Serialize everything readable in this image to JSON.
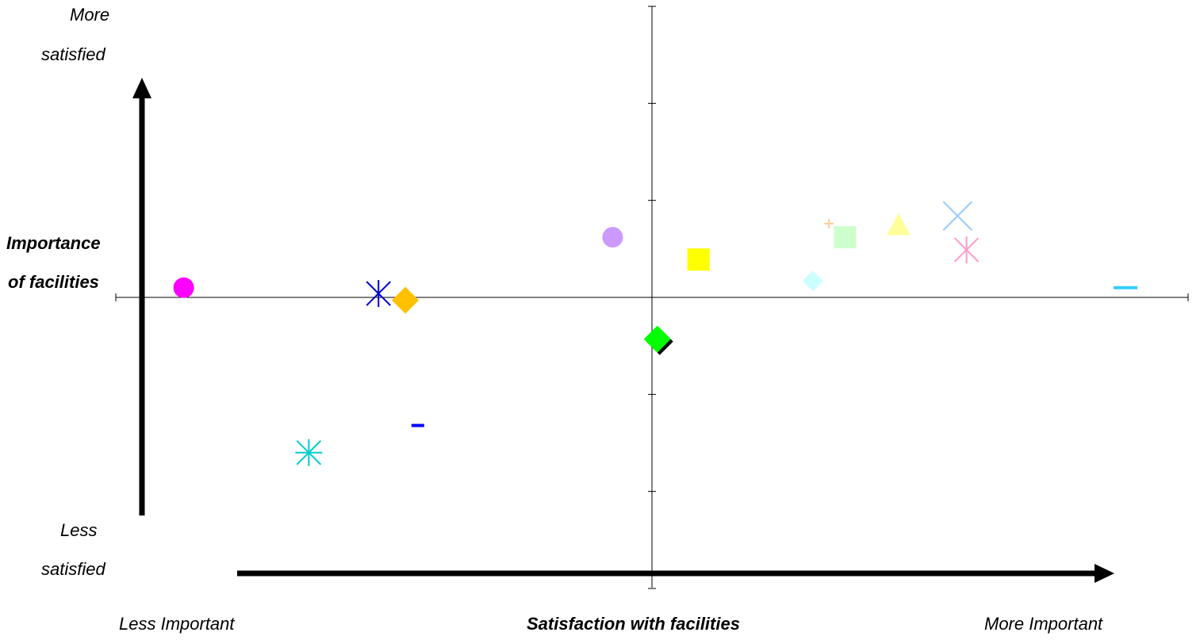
{
  "labels": {
    "more_satisfied_1": "More",
    "more_satisfied_2": "satisfied",
    "less_satisfied_1": "Less",
    "less_satisfied_2": "satisfied",
    "y_title_1": "Importance",
    "y_title_2": "of facilities",
    "less_important": "Less Important",
    "x_title": "Satisfaction with  facilities",
    "more_important": "More Important"
  },
  "chart_data": {
    "type": "scatter",
    "title": "",
    "xlabel": "Satisfaction with  facilities",
    "ylabel": "Importance of facilities",
    "xlim": [
      -3,
      3
    ],
    "ylim": [
      -3,
      3
    ],
    "grid": false,
    "points": [
      {
        "x": -2.62,
        "y": 0.1,
        "marker": "circle",
        "color": "#ff00ff"
      },
      {
        "x": -1.53,
        "y": 0.04,
        "marker": "asterisk",
        "color": "#0000cc"
      },
      {
        "x": -1.38,
        "y": -0.03,
        "marker": "diamond",
        "color": "#ffc000"
      },
      {
        "x": -1.31,
        "y": -1.32,
        "marker": "dash",
        "color": "#0000ff"
      },
      {
        "x": -1.92,
        "y": -1.6,
        "marker": "asterisk",
        "color": "#00cccc"
      },
      {
        "x": -0.22,
        "y": 0.62,
        "marker": "circle",
        "color": "#cc99ff"
      },
      {
        "x": 0.03,
        "y": -0.43,
        "marker": "diamond",
        "color": "#00ff00"
      },
      {
        "x": 0.26,
        "y": 0.39,
        "marker": "square",
        "color": "#ffff00"
      },
      {
        "x": 0.9,
        "y": 0.17,
        "marker": "diamond",
        "color": "#ccffff"
      },
      {
        "x": 0.99,
        "y": 0.76,
        "marker": "plus",
        "color": "#ffcc99"
      },
      {
        "x": 1.08,
        "y": 0.62,
        "marker": "square",
        "color": "#ccffcc"
      },
      {
        "x": 1.38,
        "y": 0.74,
        "marker": "triangle",
        "color": "#ffff99"
      },
      {
        "x": 1.71,
        "y": 0.84,
        "marker": "x",
        "color": "#99ccff"
      },
      {
        "x": 1.76,
        "y": 0.49,
        "marker": "asterisk",
        "color": "#ff99cc"
      },
      {
        "x": 2.65,
        "y": 0.1,
        "marker": "dash",
        "color": "#33ccff"
      }
    ]
  }
}
